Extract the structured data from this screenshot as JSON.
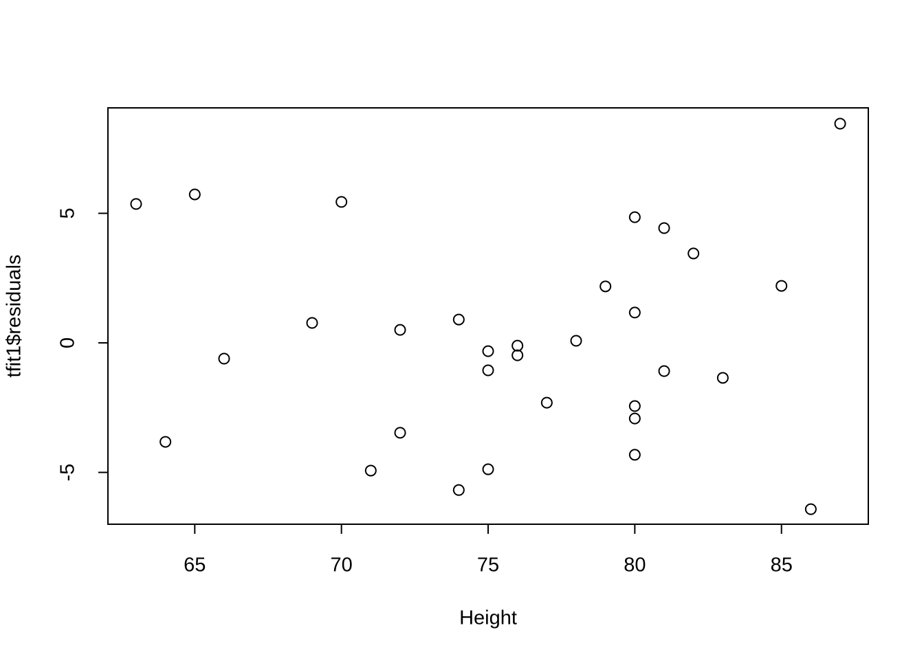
{
  "chart_data": {
    "type": "scatter",
    "xlabel": "Height",
    "ylabel": "tfit1$residuals",
    "x": [
      63,
      65,
      70,
      87,
      80,
      81,
      82,
      79,
      85,
      80,
      69,
      72,
      74,
      78,
      76,
      75,
      76,
      66,
      75,
      81,
      83,
      77,
      80,
      80,
      72,
      64,
      80,
      75,
      71,
      74,
      86
    ],
    "values": [
      5.36,
      5.73,
      5.44,
      8.46,
      4.85,
      4.43,
      3.45,
      2.18,
      2.2,
      1.17,
      0.77,
      0.5,
      0.9,
      0.08,
      -0.11,
      -0.32,
      -0.48,
      -0.61,
      -1.06,
      -1.09,
      -1.35,
      -2.31,
      -2.44,
      -2.92,
      -3.47,
      -3.82,
      -4.32,
      -4.88,
      -4.93,
      -5.68,
      -6.42
    ],
    "color": "#000000",
    "xlim": [
      62.04,
      87.96
    ],
    "ylim": [
      -7.0,
      9.07
    ],
    "xticks": [
      65,
      70,
      75,
      80,
      85
    ],
    "yticks": [
      -5,
      0,
      5
    ]
  }
}
